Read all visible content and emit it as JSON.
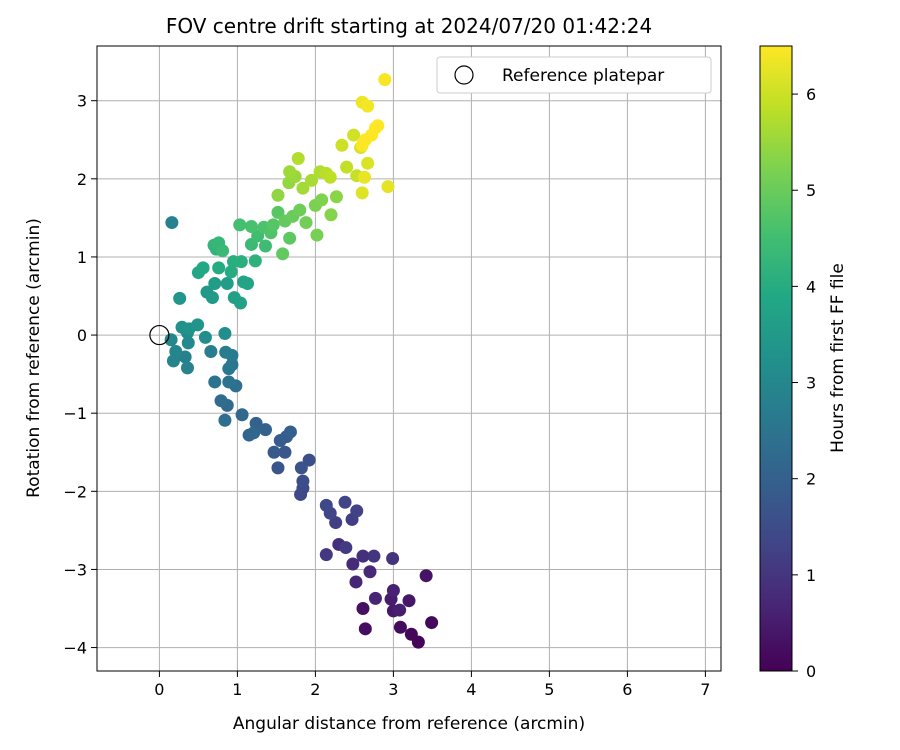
{
  "chart_data": {
    "type": "scatter",
    "title": "FOV centre drift starting at 2024/07/20 01:42:24",
    "xlabel": "Angular distance from reference (arcmin)",
    "ylabel": "Rotation from reference (arcmin)",
    "xlim": [
      -0.8,
      7.2
    ],
    "ylim": [
      -4.3,
      3.7
    ],
    "xticks": [
      0,
      1,
      2,
      3,
      4,
      5,
      6,
      7
    ],
    "yticks": [
      -4,
      -3,
      -2,
      -1,
      0,
      1,
      2,
      3
    ],
    "grid": true,
    "legend": {
      "position": "top-right",
      "entries": [
        "Reference platepar"
      ]
    },
    "reference_point": {
      "x": 0,
      "y": 0
    },
    "colorbar": {
      "label": "Hours from first FF file",
      "colormap": "viridis",
      "range": [
        0,
        6.5
      ],
      "ticks": [
        0,
        1,
        2,
        3,
        4,
        5,
        6
      ]
    },
    "points": [
      {
        "x": 3.32,
        "y": -3.93,
        "t": 0.05
      },
      {
        "x": 3.23,
        "y": -3.83,
        "t": 0.1
      },
      {
        "x": 3.49,
        "y": -3.68,
        "t": 0.15
      },
      {
        "x": 3.09,
        "y": -3.74,
        "t": 0.2
      },
      {
        "x": 2.64,
        "y": -3.76,
        "t": 0.25
      },
      {
        "x": 2.61,
        "y": -3.5,
        "t": 0.3
      },
      {
        "x": 3.42,
        "y": -3.08,
        "t": 0.35
      },
      {
        "x": 3.2,
        "y": -3.4,
        "t": 0.4
      },
      {
        "x": 3.0,
        "y": -3.53,
        "t": 0.45
      },
      {
        "x": 2.97,
        "y": -3.38,
        "t": 0.5
      },
      {
        "x": 3.08,
        "y": -3.52,
        "t": 0.55
      },
      {
        "x": 3.0,
        "y": -3.27,
        "t": 0.6
      },
      {
        "x": 2.77,
        "y": -3.37,
        "t": 0.65
      },
      {
        "x": 2.52,
        "y": -3.16,
        "t": 0.7
      },
      {
        "x": 2.7,
        "y": -3.03,
        "t": 0.75
      },
      {
        "x": 2.48,
        "y": -2.93,
        "t": 0.8
      },
      {
        "x": 2.3,
        "y": -2.68,
        "t": 0.85
      },
      {
        "x": 2.61,
        "y": -2.83,
        "t": 0.9
      },
      {
        "x": 2.99,
        "y": -2.86,
        "t": 0.95
      },
      {
        "x": 2.75,
        "y": -2.83,
        "t": 1.0
      },
      {
        "x": 2.14,
        "y": -2.81,
        "t": 1.05
      },
      {
        "x": 2.39,
        "y": -2.72,
        "t": 1.1
      },
      {
        "x": 2.47,
        "y": -2.36,
        "t": 1.15
      },
      {
        "x": 2.26,
        "y": -2.4,
        "t": 1.2
      },
      {
        "x": 2.53,
        "y": -2.25,
        "t": 1.25
      },
      {
        "x": 2.38,
        "y": -2.14,
        "t": 1.3
      },
      {
        "x": 2.19,
        "y": -2.28,
        "t": 1.35
      },
      {
        "x": 2.14,
        "y": -2.18,
        "t": 1.4
      },
      {
        "x": 1.81,
        "y": -2.04,
        "t": 1.45
      },
      {
        "x": 1.84,
        "y": -1.96,
        "t": 1.5
      },
      {
        "x": 1.84,
        "y": -1.87,
        "t": 1.55
      },
      {
        "x": 1.92,
        "y": -1.6,
        "t": 1.6
      },
      {
        "x": 1.82,
        "y": -1.7,
        "t": 1.65
      },
      {
        "x": 1.52,
        "y": -1.7,
        "t": 1.7
      },
      {
        "x": 1.61,
        "y": -1.5,
        "t": 1.75
      },
      {
        "x": 1.47,
        "y": -1.5,
        "t": 1.8
      },
      {
        "x": 1.55,
        "y": -1.35,
        "t": 1.85
      },
      {
        "x": 1.63,
        "y": -1.3,
        "t": 1.9
      },
      {
        "x": 1.68,
        "y": -1.24,
        "t": 1.95
      },
      {
        "x": 1.36,
        "y": -1.21,
        "t": 2.0
      },
      {
        "x": 1.24,
        "y": -1.13,
        "t": 2.05
      },
      {
        "x": 1.15,
        "y": -1.28,
        "t": 2.1
      },
      {
        "x": 1.21,
        "y": -1.25,
        "t": 2.15
      },
      {
        "x": 1.06,
        "y": -1.02,
        "t": 2.2
      },
      {
        "x": 0.87,
        "y": -0.9,
        "t": 2.25
      },
      {
        "x": 0.79,
        "y": -0.84,
        "t": 2.3
      },
      {
        "x": 0.84,
        "y": -1.09,
        "t": 2.35
      },
      {
        "x": 0.98,
        "y": -0.65,
        "t": 2.4
      },
      {
        "x": 0.89,
        "y": -0.6,
        "t": 2.45
      },
      {
        "x": 0.71,
        "y": -0.6,
        "t": 2.5
      },
      {
        "x": 0.93,
        "y": -0.38,
        "t": 2.55
      },
      {
        "x": 0.89,
        "y": -0.43,
        "t": 2.6
      },
      {
        "x": 0.93,
        "y": -0.26,
        "t": 2.65
      },
      {
        "x": 0.85,
        "y": -0.22,
        "t": 2.7
      },
      {
        "x": 0.66,
        "y": -0.21,
        "t": 2.75
      },
      {
        "x": 0.33,
        "y": -0.28,
        "t": 2.8
      },
      {
        "x": 0.36,
        "y": -0.42,
        "t": 2.85
      },
      {
        "x": 0.18,
        "y": -0.33,
        "t": 2.9
      },
      {
        "x": 0.21,
        "y": -0.21,
        "t": 2.95
      },
      {
        "x": 0.15,
        "y": -0.06,
        "t": 3.0
      },
      {
        "x": 0.37,
        "y": -0.1,
        "t": 3.05
      },
      {
        "x": 0.36,
        "y": 0.03,
        "t": 3.1
      },
      {
        "x": 0.59,
        "y": -0.03,
        "t": 3.15
      },
      {
        "x": 0.84,
        "y": 0.02,
        "t": 3.2
      },
      {
        "x": 0.29,
        "y": 0.1,
        "t": 3.25
      },
      {
        "x": 0.38,
        "y": 0.08,
        "t": 3.3
      },
      {
        "x": 0.49,
        "y": 0.13,
        "t": 3.35
      },
      {
        "x": 0.26,
        "y": 0.47,
        "t": 3.4
      },
      {
        "x": 0.61,
        "y": 0.55,
        "t": 3.45
      },
      {
        "x": 0.68,
        "y": 0.48,
        "t": 3.5
      },
      {
        "x": 0.71,
        "y": 0.66,
        "t": 3.55
      },
      {
        "x": 0.87,
        "y": 0.66,
        "t": 3.6
      },
      {
        "x": 0.96,
        "y": 0.48,
        "t": 3.65
      },
      {
        "x": 1.04,
        "y": 0.41,
        "t": 3.7
      },
      {
        "x": 1.08,
        "y": 0.68,
        "t": 3.75
      },
      {
        "x": 1.13,
        "y": 0.66,
        "t": 3.8
      },
      {
        "x": 0.5,
        "y": 0.8,
        "t": 3.85
      },
      {
        "x": 0.56,
        "y": 0.86,
        "t": 3.9
      },
      {
        "x": 0.76,
        "y": 0.86,
        "t": 3.95
      },
      {
        "x": 0.92,
        "y": 0.81,
        "t": 4.0
      },
      {
        "x": 0.95,
        "y": 0.94,
        "t": 4.05
      },
      {
        "x": 1.05,
        "y": 0.94,
        "t": 4.1
      },
      {
        "x": 1.23,
        "y": 0.95,
        "t": 4.15
      },
      {
        "x": 0.73,
        "y": 1.1,
        "t": 4.2
      },
      {
        "x": 0.7,
        "y": 1.15,
        "t": 4.25
      },
      {
        "x": 0.76,
        "y": 1.18,
        "t": 4.3
      },
      {
        "x": 0.81,
        "y": 1.08,
        "t": 4.35
      },
      {
        "x": 1.18,
        "y": 1.16,
        "t": 4.4
      },
      {
        "x": 1.36,
        "y": 1.14,
        "t": 4.45
      },
      {
        "x": 1.26,
        "y": 1.27,
        "t": 4.5
      },
      {
        "x": 1.03,
        "y": 1.41,
        "t": 4.55
      },
      {
        "x": 1.18,
        "y": 1.39,
        "t": 4.6
      },
      {
        "x": 1.34,
        "y": 1.38,
        "t": 4.65
      },
      {
        "x": 1.43,
        "y": 1.31,
        "t": 4.7
      },
      {
        "x": 1.46,
        "y": 1.41,
        "t": 4.75
      },
      {
        "x": 0.16,
        "y": 1.44,
        "t": 2.8
      },
      {
        "x": 1.52,
        "y": 1.57,
        "t": 4.8
      },
      {
        "x": 1.67,
        "y": 1.24,
        "t": 4.85
      },
      {
        "x": 1.58,
        "y": 1.04,
        "t": 4.9
      },
      {
        "x": 1.61,
        "y": 1.46,
        "t": 4.95
      },
      {
        "x": 1.71,
        "y": 1.52,
        "t": 5.0
      },
      {
        "x": 1.8,
        "y": 1.6,
        "t": 5.05
      },
      {
        "x": 1.88,
        "y": 1.44,
        "t": 5.1
      },
      {
        "x": 2.02,
        "y": 1.28,
        "t": 5.15
      },
      {
        "x": 2.0,
        "y": 1.66,
        "t": 5.2
      },
      {
        "x": 2.08,
        "y": 1.73,
        "t": 5.25
      },
      {
        "x": 2.2,
        "y": 1.54,
        "t": 5.3
      },
      {
        "x": 2.27,
        "y": 1.77,
        "t": 5.35
      },
      {
        "x": 1.52,
        "y": 1.79,
        "t": 5.4
      },
      {
        "x": 1.66,
        "y": 1.95,
        "t": 5.45
      },
      {
        "x": 1.74,
        "y": 2.03,
        "t": 5.5
      },
      {
        "x": 1.67,
        "y": 2.09,
        "t": 5.55
      },
      {
        "x": 1.84,
        "y": 1.88,
        "t": 5.6
      },
      {
        "x": 1.95,
        "y": 1.98,
        "t": 5.65
      },
      {
        "x": 2.06,
        "y": 2.09,
        "t": 5.7
      },
      {
        "x": 1.78,
        "y": 2.26,
        "t": 5.75
      },
      {
        "x": 2.14,
        "y": 2.07,
        "t": 5.8
      },
      {
        "x": 2.19,
        "y": 2.02,
        "t": 5.85
      },
      {
        "x": 2.4,
        "y": 2.15,
        "t": 5.9
      },
      {
        "x": 2.53,
        "y": 2.04,
        "t": 5.95
      },
      {
        "x": 2.34,
        "y": 2.43,
        "t": 6.0
      },
      {
        "x": 2.49,
        "y": 2.56,
        "t": 6.05
      },
      {
        "x": 2.58,
        "y": 2.4,
        "t": 6.1
      },
      {
        "x": 2.67,
        "y": 2.2,
        "t": 6.15
      },
      {
        "x": 2.6,
        "y": 1.82,
        "t": 6.2
      },
      {
        "x": 2.93,
        "y": 1.9,
        "t": 6.25
      },
      {
        "x": 2.63,
        "y": 2.02,
        "t": 6.3
      },
      {
        "x": 2.6,
        "y": 2.98,
        "t": 6.35
      },
      {
        "x": 2.67,
        "y": 2.93,
        "t": 6.4
      },
      {
        "x": 2.89,
        "y": 3.27,
        "t": 6.45
      },
      {
        "x": 2.64,
        "y": 2.5,
        "t": 6.5
      },
      {
        "x": 2.72,
        "y": 2.56,
        "t": 6.5
      },
      {
        "x": 2.77,
        "y": 2.65,
        "t": 6.5
      },
      {
        "x": 2.8,
        "y": 2.68,
        "t": 6.5
      },
      {
        "x": 2.6,
        "y": 2.43,
        "t": 6.48
      }
    ]
  }
}
